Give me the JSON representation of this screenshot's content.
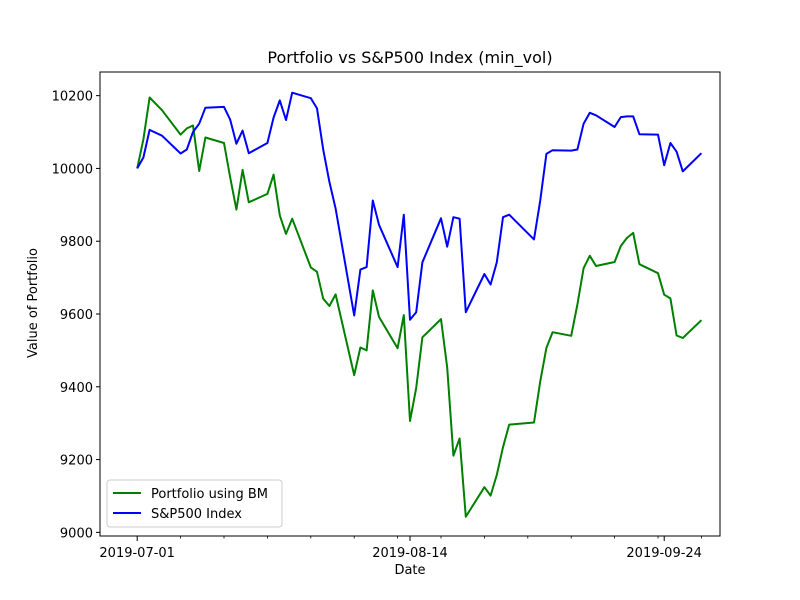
{
  "chart_data": {
    "type": "line",
    "title": "Portfolio vs S&P500 Index (min_vol)",
    "xlabel": "Date",
    "ylabel": "Value of Portfolio",
    "x_start": "2019-07-01",
    "x_ticks": [
      "2019-07-01",
      "2019-08-14",
      "2019-09-24"
    ],
    "y_ticks": [
      9000,
      9200,
      9400,
      9600,
      9800,
      10000,
      10200
    ],
    "ylim": [
      8990,
      10265
    ],
    "xlim": [
      "2019-06-25",
      "2019-10-03"
    ],
    "grid": false,
    "legend_position": "lower-left",
    "series": [
      {
        "name": "Portfolio using BM",
        "color": "#008000",
        "values": [
          {
            "x": "2019-07-01",
            "y": 10000
          },
          {
            "x": "2019-07-02",
            "y": 10080
          },
          {
            "x": "2019-07-03",
            "y": 10195
          },
          {
            "x": "2019-07-05",
            "y": 10160
          },
          {
            "x": "2019-07-08",
            "y": 10093
          },
          {
            "x": "2019-07-09",
            "y": 10110
          },
          {
            "x": "2019-07-10",
            "y": 10118
          },
          {
            "x": "2019-07-11",
            "y": 9993
          },
          {
            "x": "2019-07-12",
            "y": 10085
          },
          {
            "x": "2019-07-15",
            "y": 10070
          },
          {
            "x": "2019-07-16",
            "y": 9975
          },
          {
            "x": "2019-07-17",
            "y": 9887
          },
          {
            "x": "2019-07-18",
            "y": 9996
          },
          {
            "x": "2019-07-19",
            "y": 9907
          },
          {
            "x": "2019-07-22",
            "y": 9930
          },
          {
            "x": "2019-07-23",
            "y": 9983
          },
          {
            "x": "2019-07-24",
            "y": 9871
          },
          {
            "x": "2019-07-25",
            "y": 9820
          },
          {
            "x": "2019-07-26",
            "y": 9862
          },
          {
            "x": "2019-07-29",
            "y": 9728
          },
          {
            "x": "2019-07-30",
            "y": 9716
          },
          {
            "x": "2019-07-31",
            "y": 9642
          },
          {
            "x": "2019-08-01",
            "y": 9622
          },
          {
            "x": "2019-08-02",
            "y": 9654
          },
          {
            "x": "2019-08-05",
            "y": 9432
          },
          {
            "x": "2019-08-06",
            "y": 9508
          },
          {
            "x": "2019-08-07",
            "y": 9500
          },
          {
            "x": "2019-08-08",
            "y": 9665
          },
          {
            "x": "2019-08-09",
            "y": 9592
          },
          {
            "x": "2019-08-12",
            "y": 9506
          },
          {
            "x": "2019-08-13",
            "y": 9597
          },
          {
            "x": "2019-08-14",
            "y": 9306
          },
          {
            "x": "2019-08-15",
            "y": 9397
          },
          {
            "x": "2019-08-16",
            "y": 9536
          },
          {
            "x": "2019-08-19",
            "y": 9586
          },
          {
            "x": "2019-08-20",
            "y": 9453
          },
          {
            "x": "2019-08-21",
            "y": 9211
          },
          {
            "x": "2019-08-22",
            "y": 9258
          },
          {
            "x": "2019-08-23",
            "y": 9043
          },
          {
            "x": "2019-08-26",
            "y": 9124
          },
          {
            "x": "2019-08-27",
            "y": 9101
          },
          {
            "x": "2019-08-28",
            "y": 9158
          },
          {
            "x": "2019-08-29",
            "y": 9234
          },
          {
            "x": "2019-08-30",
            "y": 9296
          },
          {
            "x": "2019-09-03",
            "y": 9302
          },
          {
            "x": "2019-09-04",
            "y": 9414
          },
          {
            "x": "2019-09-05",
            "y": 9507
          },
          {
            "x": "2019-09-06",
            "y": 9550
          },
          {
            "x": "2019-09-09",
            "y": 9540
          },
          {
            "x": "2019-09-10",
            "y": 9626
          },
          {
            "x": "2019-09-11",
            "y": 9726
          },
          {
            "x": "2019-09-12",
            "y": 9760
          },
          {
            "x": "2019-09-13",
            "y": 9732
          },
          {
            "x": "2019-09-16",
            "y": 9743
          },
          {
            "x": "2019-09-17",
            "y": 9787
          },
          {
            "x": "2019-09-18",
            "y": 9809
          },
          {
            "x": "2019-09-19",
            "y": 9823
          },
          {
            "x": "2019-09-20",
            "y": 9737
          },
          {
            "x": "2019-09-23",
            "y": 9712
          },
          {
            "x": "2019-09-24",
            "y": 9653
          },
          {
            "x": "2019-09-25",
            "y": 9643
          },
          {
            "x": "2019-09-26",
            "y": 9541
          },
          {
            "x": "2019-09-27",
            "y": 9534
          },
          {
            "x": "2019-09-30",
            "y": 9583
          }
        ]
      },
      {
        "name": "S&P500 Index",
        "color": "#0000ff",
        "values": [
          {
            "x": "2019-07-01",
            "y": 10000
          },
          {
            "x": "2019-07-02",
            "y": 10030
          },
          {
            "x": "2019-07-03",
            "y": 10106
          },
          {
            "x": "2019-07-05",
            "y": 10090
          },
          {
            "x": "2019-07-08",
            "y": 10041
          },
          {
            "x": "2019-07-09",
            "y": 10052
          },
          {
            "x": "2019-07-10",
            "y": 10100
          },
          {
            "x": "2019-07-11",
            "y": 10123
          },
          {
            "x": "2019-07-12",
            "y": 10167
          },
          {
            "x": "2019-07-15",
            "y": 10169
          },
          {
            "x": "2019-07-16",
            "y": 10134
          },
          {
            "x": "2019-07-17",
            "y": 10068
          },
          {
            "x": "2019-07-18",
            "y": 10104
          },
          {
            "x": "2019-07-19",
            "y": 10042
          },
          {
            "x": "2019-07-22",
            "y": 10070
          },
          {
            "x": "2019-07-23",
            "y": 10140
          },
          {
            "x": "2019-07-24",
            "y": 10187
          },
          {
            "x": "2019-07-25",
            "y": 10133
          },
          {
            "x": "2019-07-26",
            "y": 10208
          },
          {
            "x": "2019-07-29",
            "y": 10193
          },
          {
            "x": "2019-07-30",
            "y": 10165
          },
          {
            "x": "2019-07-31",
            "y": 10052
          },
          {
            "x": "2019-08-01",
            "y": 9963
          },
          {
            "x": "2019-08-02",
            "y": 9890
          },
          {
            "x": "2019-08-05",
            "y": 9596
          },
          {
            "x": "2019-08-06",
            "y": 9722
          },
          {
            "x": "2019-08-07",
            "y": 9729
          },
          {
            "x": "2019-08-08",
            "y": 9912
          },
          {
            "x": "2019-08-09",
            "y": 9845
          },
          {
            "x": "2019-08-12",
            "y": 9729
          },
          {
            "x": "2019-08-13",
            "y": 9873
          },
          {
            "x": "2019-08-14",
            "y": 9584
          },
          {
            "x": "2019-08-15",
            "y": 9605
          },
          {
            "x": "2019-08-16",
            "y": 9742
          },
          {
            "x": "2019-08-19",
            "y": 9863
          },
          {
            "x": "2019-08-20",
            "y": 9785
          },
          {
            "x": "2019-08-21",
            "y": 9866
          },
          {
            "x": "2019-08-22",
            "y": 9862
          },
          {
            "x": "2019-08-23",
            "y": 9605
          },
          {
            "x": "2019-08-26",
            "y": 9710
          },
          {
            "x": "2019-08-27",
            "y": 9681
          },
          {
            "x": "2019-08-28",
            "y": 9742
          },
          {
            "x": "2019-08-29",
            "y": 9866
          },
          {
            "x": "2019-08-30",
            "y": 9873
          },
          {
            "x": "2019-09-03",
            "y": 9805
          },
          {
            "x": "2019-09-04",
            "y": 9911
          },
          {
            "x": "2019-09-05",
            "y": 10040
          },
          {
            "x": "2019-09-06",
            "y": 10050
          },
          {
            "x": "2019-09-09",
            "y": 10049
          },
          {
            "x": "2019-09-10",
            "y": 10052
          },
          {
            "x": "2019-09-11",
            "y": 10123
          },
          {
            "x": "2019-09-12",
            "y": 10153
          },
          {
            "x": "2019-09-13",
            "y": 10146
          },
          {
            "x": "2019-09-16",
            "y": 10114
          },
          {
            "x": "2019-09-17",
            "y": 10141
          },
          {
            "x": "2019-09-18",
            "y": 10143
          },
          {
            "x": "2019-09-19",
            "y": 10143
          },
          {
            "x": "2019-09-20",
            "y": 10094
          },
          {
            "x": "2019-09-23",
            "y": 10093
          },
          {
            "x": "2019-09-24",
            "y": 10009
          },
          {
            "x": "2019-09-25",
            "y": 10070
          },
          {
            "x": "2019-09-26",
            "y": 10046
          },
          {
            "x": "2019-09-27",
            "y": 9992
          },
          {
            "x": "2019-09-30",
            "y": 10042
          }
        ]
      }
    ]
  }
}
